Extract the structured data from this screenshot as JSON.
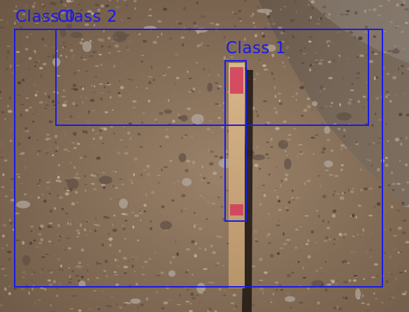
{
  "photo": {
    "subject": "asphalt-pavement-with-wooden-stick",
    "colors": {
      "asphalt": "#8a7560",
      "asphalt_dark": "#5a4a3a",
      "asphalt_light": "#b8a58c",
      "stick": "#c9a878",
      "stick_mark": "#d43a5a",
      "box": "#1a1ae6"
    }
  },
  "detections": [
    {
      "label": "Class 0"
    },
    {
      "label": "Class 2"
    },
    {
      "label": "Class 1"
    }
  ]
}
